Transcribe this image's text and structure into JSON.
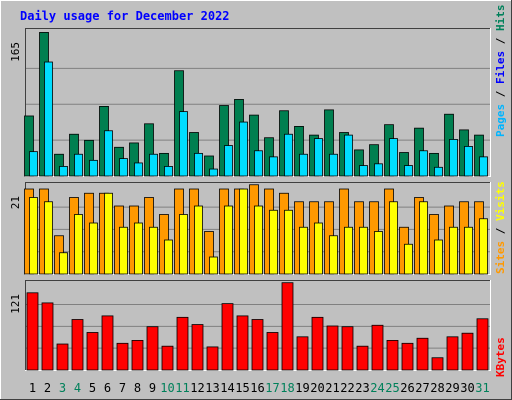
{
  "chart_data": {
    "type": "bar",
    "title": "Daily usage for December 2022",
    "categories": [
      "1",
      "2",
      "3",
      "4",
      "5",
      "6",
      "7",
      "8",
      "9",
      "10",
      "11",
      "12",
      "13",
      "14",
      "15",
      "16",
      "17",
      "18",
      "19",
      "20",
      "21",
      "22",
      "23",
      "24",
      "25",
      "26",
      "27",
      "28",
      "29",
      "30",
      "31"
    ],
    "weekend_days": [
      "3",
      "4",
      "10",
      "11",
      "17",
      "18",
      "24",
      "25",
      "31"
    ],
    "panels": [
      {
        "id": "top",
        "max_label": "165",
        "ylim": [
          0,
          165
        ],
        "legend": [
          "Pages",
          "Files",
          "Hits"
        ],
        "series": [
          {
            "name": "Hits",
            "color": "#007f50",
            "values": [
              69,
              165,
              25,
              48,
              41,
              80,
              33,
              38,
              60,
              26,
              121,
              50,
              23,
              81,
              88,
              70,
              44,
              75,
              57,
              47,
              76,
              50,
              30,
              36,
              59,
              27,
              55,
              26,
              71,
              53,
              47
            ]
          },
          {
            "name": "Files",
            "color": "#00ddff",
            "values": [
              28,
              131,
              11,
              25,
              18,
              52,
              20,
              15,
              25,
              11,
              74,
              26,
              8,
              35,
              62,
              29,
              22,
              48,
              25,
              43,
              25,
              47,
              12,
              14,
              43,
              12,
              29,
              10,
              42,
              34,
              22
            ]
          },
          {
            "name": "Pages",
            "color": "#00b4ff",
            "values": [
              0,
              0,
              0,
              0,
              0,
              0,
              0,
              0,
              0,
              0,
              0,
              0,
              0,
              0,
              0,
              0,
              0,
              0,
              0,
              0,
              0,
              0,
              0,
              0,
              0,
              0,
              0,
              0,
              0,
              0,
              0
            ]
          }
        ]
      },
      {
        "id": "middle",
        "max_label": "21",
        "ylim": [
          0,
          21
        ],
        "legend": [
          "Sites",
          "Visits"
        ],
        "series": [
          {
            "name": "Visits",
            "color": "#ff9900",
            "values": [
              20,
              20,
              9,
              18,
              19,
              19,
              16,
              16,
              18,
              14,
              20,
              20,
              10,
              20,
              20,
              21,
              20,
              19,
              17,
              17,
              17,
              20,
              17,
              17,
              20,
              11,
              18,
              14,
              16,
              17,
              17
            ]
          },
          {
            "name": "Sites",
            "color": "#ffff00",
            "values": [
              18,
              17,
              5,
              14,
              12,
              19,
              11,
              12,
              11,
              8,
              14,
              16,
              4,
              16,
              20,
              16,
              15,
              15,
              11,
              12,
              9,
              11,
              11,
              10,
              17,
              7,
              17,
              8,
              11,
              11,
              13
            ]
          }
        ]
      },
      {
        "id": "bottom",
        "max_label": "121",
        "ylim": [
          0,
          121
        ],
        "legend": [
          "KBytes"
        ],
        "series": [
          {
            "name": "KBytes",
            "color": "#ff0000",
            "values": [
              107,
              93,
              36,
              70,
              52,
              75,
              37,
              41,
              60,
              33,
              73,
              63,
              32,
              92,
              75,
              70,
              52,
              121,
              46,
              73,
              61,
              60,
              33,
              62,
              41,
              37,
              44,
              17,
              46,
              51,
              71
            ]
          }
        ]
      }
    ],
    "colors": {
      "background": "#c0c0c0",
      "plot_bg": "#c0c0c0",
      "title": "#0000ff",
      "axis_text": "#000000",
      "weekend_text": "#00805a",
      "grid": "#808080",
      "label_pages": "#00b4ff",
      "label_files": "#0000ff",
      "label_hits": "#00805a",
      "label_sites": "#ff9900",
      "label_visits": "#ffff00",
      "label_kbytes": "#ff0000",
      "label_sep": "#000000"
    }
  }
}
